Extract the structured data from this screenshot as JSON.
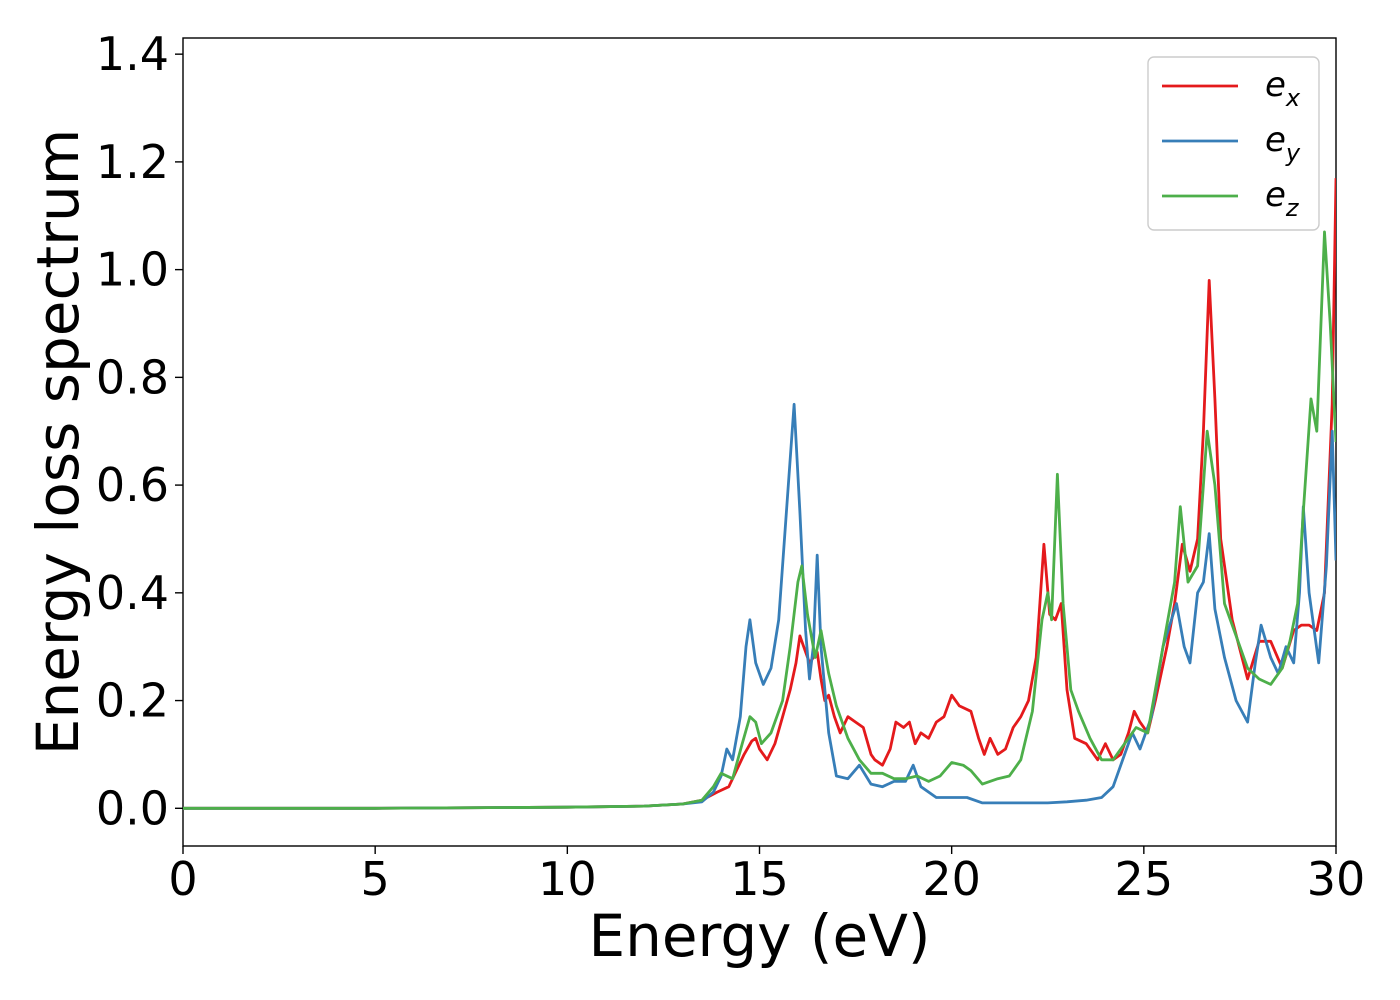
{
  "chart_data": {
    "type": "line",
    "xlabel": "Energy (eV)",
    "ylabel": "Energy loss spectrum",
    "xlim": [
      0,
      30
    ],
    "ylim": [
      -0.07,
      1.43
    ],
    "xticks": [
      0,
      5,
      10,
      15,
      20,
      25,
      30
    ],
    "yticks": [
      0.0,
      0.2,
      0.4,
      0.6,
      0.8,
      1.0,
      1.2,
      1.4
    ],
    "xtick_labels": [
      "0",
      "5",
      "10",
      "15",
      "20",
      "25",
      "30"
    ],
    "ytick_labels": [
      "0.0",
      "0.2",
      "0.4",
      "0.6",
      "0.8",
      "1.0",
      "1.2",
      "1.4"
    ],
    "grid": false,
    "legend_position": "top-right",
    "series": [
      {
        "name": "e",
        "subscript": "x",
        "color": "#e41a1c",
        "points": [
          [
            0,
            0.0
          ],
          [
            5,
            0.0
          ],
          [
            10,
            0.002
          ],
          [
            12,
            0.004
          ],
          [
            13,
            0.008
          ],
          [
            13.5,
            0.015
          ],
          [
            13.9,
            0.03
          ],
          [
            14.2,
            0.04
          ],
          [
            14.4,
            0.07
          ],
          [
            14.6,
            0.1
          ],
          [
            14.8,
            0.125
          ],
          [
            14.9,
            0.13
          ],
          [
            15.0,
            0.11
          ],
          [
            15.2,
            0.09
          ],
          [
            15.4,
            0.12
          ],
          [
            15.6,
            0.17
          ],
          [
            15.8,
            0.22
          ],
          [
            15.95,
            0.27
          ],
          [
            16.05,
            0.32
          ],
          [
            16.15,
            0.3
          ],
          [
            16.3,
            0.27
          ],
          [
            16.5,
            0.29
          ],
          [
            16.6,
            0.24
          ],
          [
            16.7,
            0.2
          ],
          [
            16.8,
            0.21
          ],
          [
            16.95,
            0.17
          ],
          [
            17.1,
            0.14
          ],
          [
            17.3,
            0.17
          ],
          [
            17.5,
            0.16
          ],
          [
            17.7,
            0.15
          ],
          [
            17.9,
            0.1
          ],
          [
            18.0,
            0.09
          ],
          [
            18.2,
            0.08
          ],
          [
            18.4,
            0.11
          ],
          [
            18.55,
            0.16
          ],
          [
            18.75,
            0.15
          ],
          [
            18.9,
            0.16
          ],
          [
            19.05,
            0.12
          ],
          [
            19.2,
            0.14
          ],
          [
            19.4,
            0.13
          ],
          [
            19.6,
            0.16
          ],
          [
            19.8,
            0.17
          ],
          [
            20.0,
            0.21
          ],
          [
            20.2,
            0.19
          ],
          [
            20.5,
            0.18
          ],
          [
            20.7,
            0.13
          ],
          [
            20.85,
            0.1
          ],
          [
            21.0,
            0.13
          ],
          [
            21.2,
            0.1
          ],
          [
            21.4,
            0.11
          ],
          [
            21.6,
            0.15
          ],
          [
            21.8,
            0.17
          ],
          [
            22.0,
            0.2
          ],
          [
            22.2,
            0.28
          ],
          [
            22.4,
            0.49
          ],
          [
            22.55,
            0.36
          ],
          [
            22.7,
            0.35
          ],
          [
            22.85,
            0.38
          ],
          [
            23.0,
            0.22
          ],
          [
            23.2,
            0.13
          ],
          [
            23.5,
            0.12
          ],
          [
            23.8,
            0.09
          ],
          [
            24.0,
            0.12
          ],
          [
            24.2,
            0.09
          ],
          [
            24.4,
            0.1
          ],
          [
            24.6,
            0.14
          ],
          [
            24.75,
            0.18
          ],
          [
            24.9,
            0.16
          ],
          [
            25.1,
            0.14
          ],
          [
            25.3,
            0.2
          ],
          [
            25.6,
            0.3
          ],
          [
            25.8,
            0.38
          ],
          [
            26.0,
            0.49
          ],
          [
            26.2,
            0.44
          ],
          [
            26.4,
            0.5
          ],
          [
            26.55,
            0.7
          ],
          [
            26.7,
            0.98
          ],
          [
            26.85,
            0.76
          ],
          [
            27.0,
            0.5
          ],
          [
            27.3,
            0.35
          ],
          [
            27.7,
            0.24
          ],
          [
            28.0,
            0.31
          ],
          [
            28.3,
            0.31
          ],
          [
            28.6,
            0.26
          ],
          [
            28.9,
            0.33
          ],
          [
            29.1,
            0.34
          ],
          [
            29.3,
            0.34
          ],
          [
            29.5,
            0.33
          ],
          [
            29.7,
            0.4
          ],
          [
            29.9,
            0.75
          ],
          [
            30.0,
            1.17
          ]
        ]
      },
      {
        "name": "e",
        "subscript": "y",
        "color": "#377eb8",
        "points": [
          [
            0,
            0.0
          ],
          [
            5,
            0.0
          ],
          [
            10,
            0.002
          ],
          [
            12,
            0.004
          ],
          [
            13,
            0.008
          ],
          [
            13.5,
            0.012
          ],
          [
            13.8,
            0.03
          ],
          [
            14.0,
            0.06
          ],
          [
            14.15,
            0.11
          ],
          [
            14.3,
            0.09
          ],
          [
            14.5,
            0.17
          ],
          [
            14.65,
            0.3
          ],
          [
            14.75,
            0.35
          ],
          [
            14.9,
            0.27
          ],
          [
            15.1,
            0.23
          ],
          [
            15.3,
            0.26
          ],
          [
            15.5,
            0.35
          ],
          [
            15.7,
            0.55
          ],
          [
            15.9,
            0.75
          ],
          [
            16.05,
            0.55
          ],
          [
            16.2,
            0.33
          ],
          [
            16.3,
            0.24
          ],
          [
            16.4,
            0.3
          ],
          [
            16.5,
            0.47
          ],
          [
            16.6,
            0.3
          ],
          [
            16.8,
            0.14
          ],
          [
            17.0,
            0.06
          ],
          [
            17.3,
            0.055
          ],
          [
            17.6,
            0.08
          ],
          [
            17.9,
            0.045
          ],
          [
            18.2,
            0.04
          ],
          [
            18.5,
            0.05
          ],
          [
            18.8,
            0.05
          ],
          [
            19.0,
            0.08
          ],
          [
            19.2,
            0.04
          ],
          [
            19.6,
            0.02
          ],
          [
            20.0,
            0.02
          ],
          [
            20.4,
            0.02
          ],
          [
            20.8,
            0.01
          ],
          [
            21.5,
            0.01
          ],
          [
            22.0,
            0.01
          ],
          [
            22.5,
            0.01
          ],
          [
            23.0,
            0.012
          ],
          [
            23.5,
            0.015
          ],
          [
            23.9,
            0.02
          ],
          [
            24.2,
            0.04
          ],
          [
            24.5,
            0.1
          ],
          [
            24.7,
            0.14
          ],
          [
            24.9,
            0.11
          ],
          [
            25.2,
            0.17
          ],
          [
            25.5,
            0.3
          ],
          [
            25.85,
            0.38
          ],
          [
            26.05,
            0.3
          ],
          [
            26.2,
            0.27
          ],
          [
            26.4,
            0.4
          ],
          [
            26.55,
            0.42
          ],
          [
            26.7,
            0.51
          ],
          [
            26.85,
            0.37
          ],
          [
            27.1,
            0.28
          ],
          [
            27.4,
            0.2
          ],
          [
            27.7,
            0.16
          ],
          [
            27.9,
            0.27
          ],
          [
            28.05,
            0.34
          ],
          [
            28.3,
            0.28
          ],
          [
            28.5,
            0.25
          ],
          [
            28.7,
            0.3
          ],
          [
            28.9,
            0.27
          ],
          [
            29.05,
            0.4
          ],
          [
            29.15,
            0.56
          ],
          [
            29.3,
            0.4
          ],
          [
            29.55,
            0.27
          ],
          [
            29.75,
            0.45
          ],
          [
            29.9,
            0.7
          ],
          [
            30.0,
            0.46
          ]
        ]
      },
      {
        "name": "e",
        "subscript": "z",
        "color": "#4daf4a",
        "points": [
          [
            0,
            0.0
          ],
          [
            5,
            0.0
          ],
          [
            10,
            0.002
          ],
          [
            12,
            0.004
          ],
          [
            13,
            0.008
          ],
          [
            13.5,
            0.015
          ],
          [
            13.8,
            0.04
          ],
          [
            14.0,
            0.065
          ],
          [
            14.3,
            0.055
          ],
          [
            14.55,
            0.12
          ],
          [
            14.75,
            0.17
          ],
          [
            14.9,
            0.16
          ],
          [
            15.05,
            0.12
          ],
          [
            15.3,
            0.14
          ],
          [
            15.6,
            0.2
          ],
          [
            15.8,
            0.3
          ],
          [
            16.0,
            0.42
          ],
          [
            16.1,
            0.45
          ],
          [
            16.25,
            0.36
          ],
          [
            16.45,
            0.28
          ],
          [
            16.6,
            0.33
          ],
          [
            16.8,
            0.25
          ],
          [
            17.0,
            0.19
          ],
          [
            17.3,
            0.13
          ],
          [
            17.6,
            0.09
          ],
          [
            17.9,
            0.065
          ],
          [
            18.2,
            0.065
          ],
          [
            18.5,
            0.055
          ],
          [
            18.8,
            0.055
          ],
          [
            19.1,
            0.06
          ],
          [
            19.4,
            0.05
          ],
          [
            19.7,
            0.06
          ],
          [
            20.0,
            0.085
          ],
          [
            20.3,
            0.08
          ],
          [
            20.5,
            0.07
          ],
          [
            20.8,
            0.045
          ],
          [
            21.2,
            0.055
          ],
          [
            21.5,
            0.06
          ],
          [
            21.8,
            0.09
          ],
          [
            22.1,
            0.18
          ],
          [
            22.35,
            0.35
          ],
          [
            22.5,
            0.4
          ],
          [
            22.6,
            0.35
          ],
          [
            22.75,
            0.62
          ],
          [
            22.9,
            0.38
          ],
          [
            23.1,
            0.22
          ],
          [
            23.3,
            0.18
          ],
          [
            23.6,
            0.13
          ],
          [
            23.9,
            0.09
          ],
          [
            24.2,
            0.09
          ],
          [
            24.5,
            0.12
          ],
          [
            24.8,
            0.15
          ],
          [
            25.1,
            0.14
          ],
          [
            25.5,
            0.3
          ],
          [
            25.8,
            0.42
          ],
          [
            25.95,
            0.56
          ],
          [
            26.15,
            0.42
          ],
          [
            26.4,
            0.45
          ],
          [
            26.55,
            0.6
          ],
          [
            26.65,
            0.7
          ],
          [
            26.85,
            0.6
          ],
          [
            27.1,
            0.38
          ],
          [
            27.4,
            0.32
          ],
          [
            27.7,
            0.26
          ],
          [
            28.0,
            0.24
          ],
          [
            28.3,
            0.23
          ],
          [
            28.6,
            0.26
          ],
          [
            28.8,
            0.31
          ],
          [
            29.0,
            0.38
          ],
          [
            29.15,
            0.55
          ],
          [
            29.35,
            0.76
          ],
          [
            29.5,
            0.7
          ],
          [
            29.7,
            1.07
          ],
          [
            29.85,
            0.9
          ],
          [
            30.0,
            0.68
          ]
        ]
      }
    ]
  }
}
